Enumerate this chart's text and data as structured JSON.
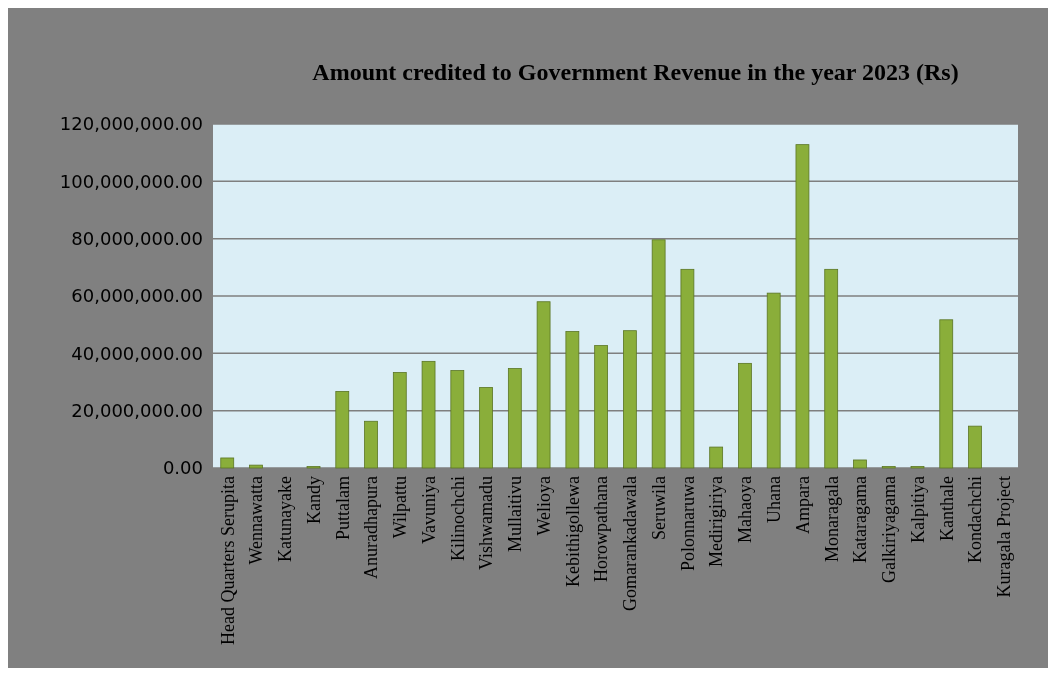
{
  "chart_data": {
    "type": "bar",
    "title": "Amount credited to Government Revenue in the year 2023 (Rs)",
    "categories": [
      "Head Quarters Serupita",
      "Wennawatta",
      "Katunayake",
      "Kandy",
      "Puttalam",
      "Anuradhapura",
      "Wilpattu",
      "Vavuniya",
      "Kilinochchi",
      "Vishwamadu",
      "Mullaitivu",
      "Welioya",
      "Kebithigollewa",
      "Horowpathana",
      "Gomarankadawala",
      "Seruwila",
      "Polonnaruwa",
      "Medirigiriya",
      "Mahaoya",
      "Uhana",
      "Ampara",
      "Monaragala",
      "Kataragama",
      "Galkiriyagama",
      "Kalpitiya",
      "Kanthale",
      "Kondachchi",
      "Kuragala Project"
    ],
    "values": [
      3500000,
      1000000,
      0,
      500000,
      26700000,
      16300000,
      33300000,
      37200000,
      34000000,
      28100000,
      34700000,
      58000000,
      47600000,
      42700000,
      47900000,
      79600000,
      69300000,
      7300000,
      36500000,
      61000000,
      112800000,
      69300000,
      2800000,
      500000,
      500000,
      51700000,
      14600000,
      0
    ],
    "color": "#8aae3a",
    "ylim": [
      0,
      120000000
    ],
    "yticks": [
      {
        "value": 0,
        "label": "0.00"
      },
      {
        "value": 20000000,
        "label": "20,000,000.00"
      },
      {
        "value": 40000000,
        "label": "40,000,000.00"
      },
      {
        "value": 60000000,
        "label": "60,000,000.00"
      },
      {
        "value": 80000000,
        "label": "80,000,000.00"
      },
      {
        "value": 100000000,
        "label": "100,000,000.00"
      },
      {
        "value": 120000000,
        "label": "120,000,000.00"
      }
    ],
    "grid": "y"
  }
}
